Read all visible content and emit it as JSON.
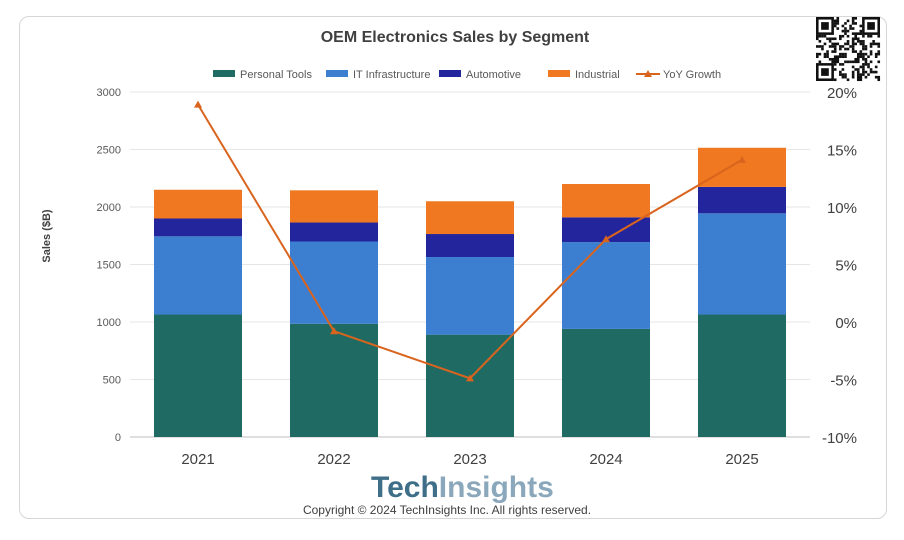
{
  "chart_data": {
    "type": "bar",
    "stacked": true,
    "title": "OEM Electronics Sales by Segment",
    "ylabel": "Sales ($B)",
    "categories": [
      "2021",
      "2022",
      "2023",
      "2024",
      "2025"
    ],
    "ylim": [
      0,
      3000
    ],
    "yticks": [
      0,
      500,
      1000,
      1500,
      2000,
      2500,
      3000
    ],
    "y2lim": [
      -10,
      20
    ],
    "y2ticks": [
      "-10%",
      "-5%",
      "0%",
      "5%",
      "10%",
      "15%",
      "20%"
    ],
    "grid": true,
    "legend_position": "top",
    "series": [
      {
        "name": "Personal Tools",
        "color": "#1f6b63",
        "values": [
          1065,
          985,
          890,
          940,
          1065
        ]
      },
      {
        "name": "IT Infrastructure",
        "color": "#3c7fd0",
        "values": [
          680,
          715,
          675,
          755,
          880
        ]
      },
      {
        "name": "Automotive",
        "color": "#23259c",
        "values": [
          155,
          165,
          200,
          215,
          230
        ]
      },
      {
        "name": "Industrial",
        "color": "#f07820",
        "values": [
          250,
          280,
          285,
          290,
          340
        ]
      }
    ],
    "line_series": [
      {
        "name": "YoY Growth",
        "axis": "right",
        "color": "#d9641e",
        "values": [
          18.9,
          -0.8,
          -4.9,
          7.2,
          14.1
        ]
      }
    ]
  },
  "brand": {
    "part1": "Tech",
    "part2": "Insights"
  },
  "copyright": "Copyright © 2024 TechInsights Inc.  All rights reserved.",
  "qr_icon": "qr-code-icon"
}
